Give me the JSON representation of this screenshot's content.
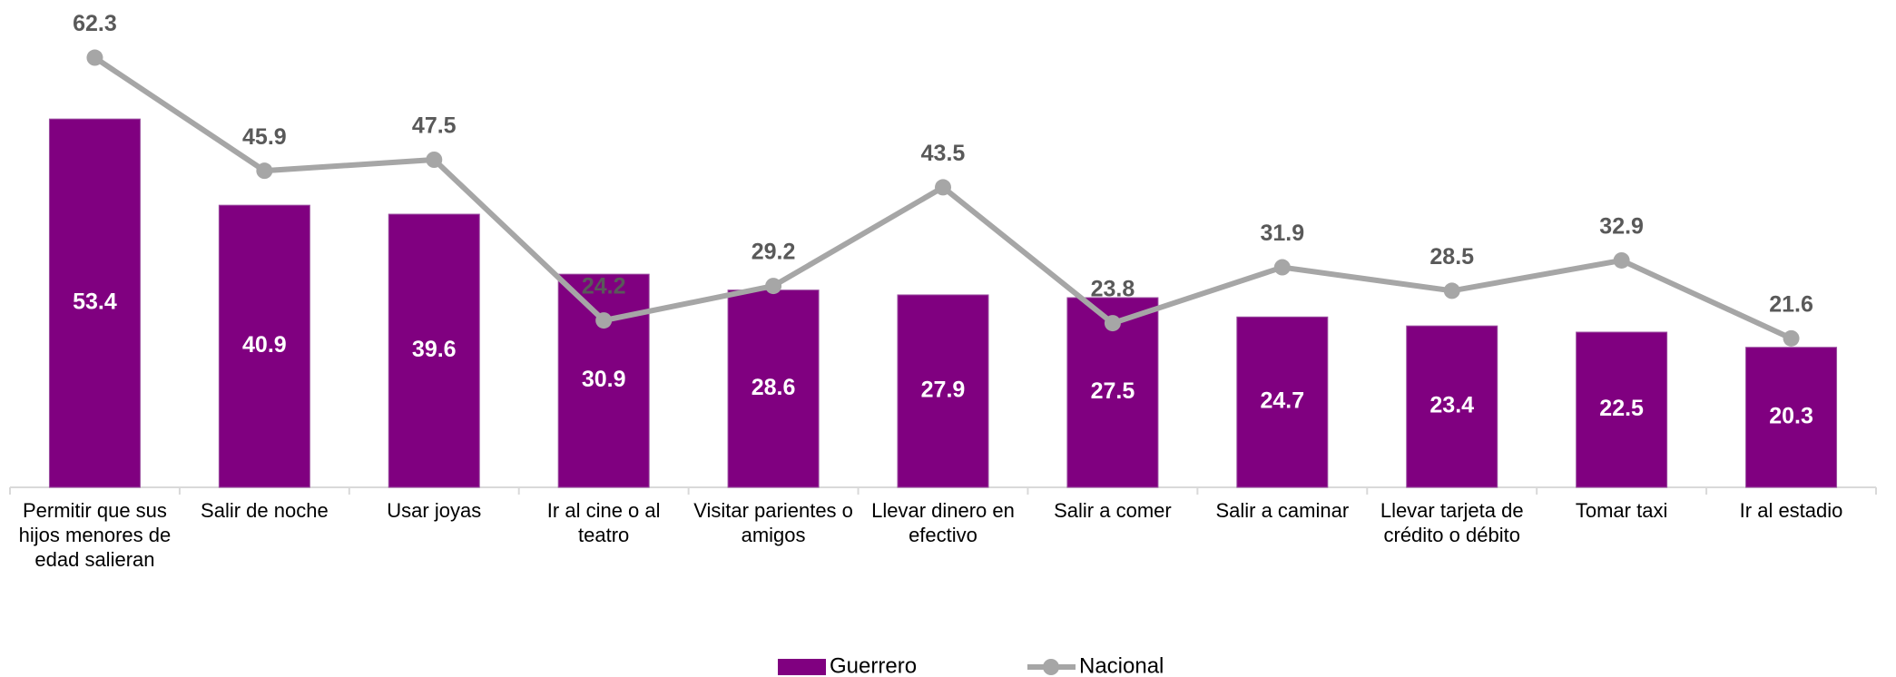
{
  "chart_data": {
    "type": "bar_line",
    "categories": [
      "Permitir que sus hijos menores de edad salieran",
      "Salir de noche",
      "Usar joyas",
      "Ir al cine o al teatro",
      "Visitar parientes o amigos",
      "Llevar dinero en efectivo",
      "Salir a comer",
      "Salir a caminar",
      "Llevar tarjeta de crédito o débito",
      "Tomar taxi",
      "Ir al estadio"
    ],
    "series": [
      {
        "name": "Guerrero",
        "type": "bar",
        "color": "#800080",
        "values": [
          53.4,
          40.9,
          39.6,
          30.9,
          28.6,
          27.9,
          27.5,
          24.7,
          23.4,
          22.5,
          20.3
        ]
      },
      {
        "name": "Nacional",
        "type": "line",
        "color": "#a6a6a6",
        "values": [
          62.3,
          45.9,
          47.5,
          24.2,
          29.2,
          43.5,
          23.8,
          31.9,
          28.5,
          32.9,
          21.6
        ]
      }
    ],
    "ylim": [
      0,
      70
    ],
    "legend": "bottom"
  }
}
